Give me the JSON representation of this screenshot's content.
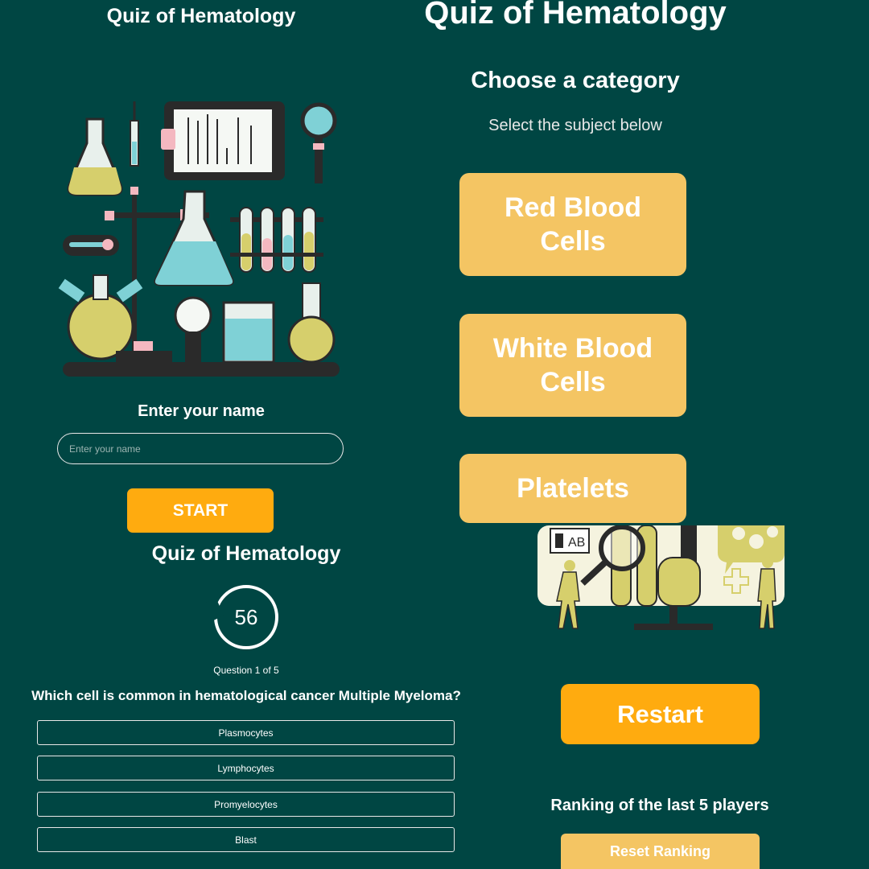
{
  "colors": {
    "background": "#004643",
    "primary_button": "#ffab0f",
    "category_button": "#f4c563",
    "text": "#ffffff"
  },
  "welcome": {
    "title": "Quiz of Hematology",
    "illustration_icon": "lab-equipment-icon",
    "name_label": "Enter your name",
    "name_placeholder": "Enter your name",
    "start_label": "START"
  },
  "quiz": {
    "title": "Quiz of Hematology",
    "timer_value": "56",
    "question_counter": "Question 1 of 5",
    "question": "Which cell is common in hematological cancer Multiple Myeloma?",
    "answers": [
      "Plasmocytes",
      "Lymphocytes",
      "Promyelocytes",
      "Blast"
    ]
  },
  "categories": {
    "title": "Quiz of Hematology",
    "heading": "Choose a category",
    "subtitle": "Select the subject below",
    "items": [
      "Red Blood Cells",
      "White Blood Cells",
      "Platelets"
    ],
    "illustration_icon": "laboratory-scene-icon",
    "illustration_label": "AB"
  },
  "results": {
    "restart_label": "Restart",
    "ranking_title": "Ranking of the last 5 players",
    "reset_label": "Reset Ranking"
  }
}
